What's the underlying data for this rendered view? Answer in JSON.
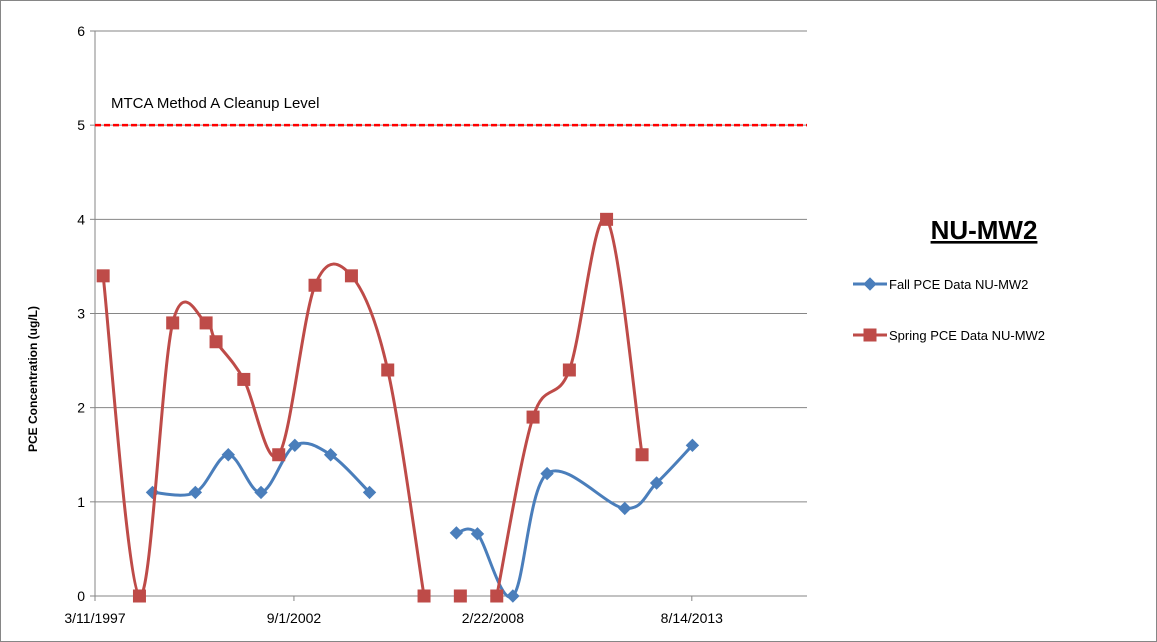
{
  "chart_data": {
    "type": "line",
    "title": "NU-MW2",
    "ylabel": "PCE Concentration (ug/L)",
    "xlabel": "",
    "ylim": [
      0,
      6
    ],
    "yticks": [
      0,
      1,
      2,
      3,
      4,
      5,
      6
    ],
    "xlim": [
      "1997-03-11",
      "2016-10-15"
    ],
    "xticks": [
      {
        "date": "1997-03-11",
        "label": "3/11/1997"
      },
      {
        "date": "2002-09-01",
        "label": "9/1/2002"
      },
      {
        "date": "2008-02-22",
        "label": "2/22/2008"
      },
      {
        "date": "2013-08-14",
        "label": "8/14/2013"
      }
    ],
    "grid": "horizontal",
    "legend_position": "right",
    "reference_line": {
      "label": "MTCA Method A Cleanup Level",
      "y": 5,
      "color": "#ff0000"
    },
    "series": [
      {
        "name": "Fall PCE Data  NU-MW2",
        "color": "#4a7ebb",
        "marker": "diamond",
        "segments": [
          [
            {
              "x": "1998-10-10",
              "y": 1.1
            },
            {
              "x": "1999-12-15",
              "y": 1.1
            },
            {
              "x": "2000-11-10",
              "y": 1.5
            },
            {
              "x": "2001-10-05",
              "y": 1.1
            },
            {
              "x": "2002-09-10",
              "y": 1.6
            },
            {
              "x": "2003-09-05",
              "y": 1.5
            },
            {
              "x": "2004-09-30",
              "y": 1.1
            }
          ],
          [
            {
              "x": "2007-02-20",
              "y": 0.67
            },
            {
              "x": "2007-09-20",
              "y": 0.66
            },
            {
              "x": "2008-09-10",
              "y": 0.0
            },
            {
              "x": "2009-08-20",
              "y": 1.3
            },
            {
              "x": "2011-10-10",
              "y": 0.93
            },
            {
              "x": "2012-08-25",
              "y": 1.2
            },
            {
              "x": "2013-08-20",
              "y": 1.6
            }
          ]
        ]
      },
      {
        "name": "Spring PCE Data  NU-MW2",
        "color": "#be4b48",
        "marker": "square",
        "segments": [
          [
            {
              "x": "1997-06-01",
              "y": 3.4
            },
            {
              "x": "1998-06-01",
              "y": 0.0
            },
            {
              "x": "1999-05-01",
              "y": 2.9
            },
            {
              "x": "2000-04-01",
              "y": 2.9
            },
            {
              "x": "2000-07-10",
              "y": 2.7
            },
            {
              "x": "2001-04-15",
              "y": 2.3
            },
            {
              "x": "2002-04-01",
              "y": 1.5
            },
            {
              "x": "2003-04-01",
              "y": 3.3
            },
            {
              "x": "2004-04-01",
              "y": 3.4
            },
            {
              "x": "2005-04-01",
              "y": 2.4
            },
            {
              "x": "2006-04-01",
              "y": 0.0
            }
          ],
          [
            {
              "x": "2007-04-01",
              "y": 0.0
            }
          ],
          [
            {
              "x": "2008-04-01",
              "y": 0.0
            },
            {
              "x": "2009-04-01",
              "y": 1.9
            },
            {
              "x": "2010-04-01",
              "y": 2.4
            },
            {
              "x": "2011-04-10",
              "y": 4.0
            },
            {
              "x": "2012-04-01",
              "y": 1.5
            }
          ]
        ]
      }
    ]
  }
}
